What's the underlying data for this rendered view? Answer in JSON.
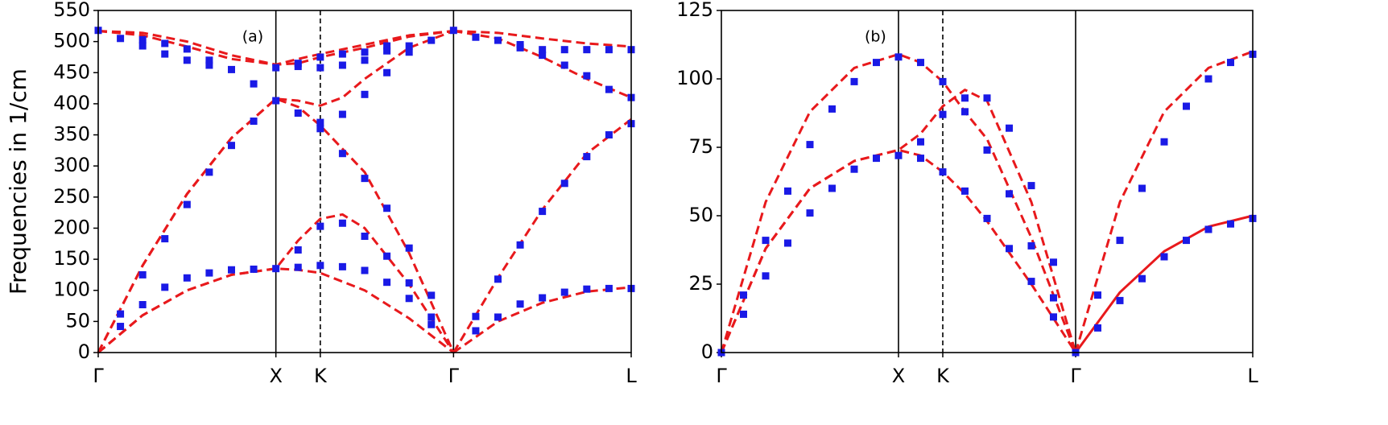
{
  "chart_data": [
    {
      "type": "line",
      "annotation": "(a)",
      "y_label": "Frequencies in 1/cm",
      "xlim": [
        0,
        3
      ],
      "ylim": [
        0,
        550
      ],
      "xticks": [
        {
          "value": 0,
          "label": "Γ"
        },
        {
          "value": 1,
          "label": "X"
        },
        {
          "value": 1.25,
          "label": "K"
        },
        {
          "value": 2,
          "label": "Γ"
        },
        {
          "value": 3,
          "label": "L"
        }
      ],
      "yticks": [
        0,
        50,
        100,
        150,
        200,
        250,
        300,
        350,
        400,
        450,
        500,
        550
      ],
      "vlines": [
        1,
        1.25,
        2
      ],
      "vline_styles": [
        "solid",
        "dashed",
        "solid"
      ],
      "series": [
        {
          "style": "dashed",
          "color": "#e8191c",
          "x": [
            0,
            0.25,
            0.5,
            0.75,
            1,
            1.125,
            1.25,
            1.5,
            1.75,
            2
          ],
          "values": [
            0,
            60,
            100,
            125,
            135,
            133,
            128,
            100,
            55,
            0
          ]
        },
        {
          "style": "dashed",
          "color": "#e8191c",
          "x": [
            0,
            0.25,
            0.5,
            0.75,
            1,
            1.125,
            1.25,
            1.375,
            1.5,
            1.75,
            2
          ],
          "values": [
            0,
            60,
            100,
            125,
            135,
            180,
            215,
            222,
            200,
            110,
            0
          ]
        },
        {
          "style": "dashed",
          "color": "#e8191c",
          "x": [
            0,
            0.25,
            0.5,
            0.75,
            1,
            1.125,
            1.25,
            1.5,
            1.75,
            2
          ],
          "values": [
            0,
            140,
            255,
            345,
            408,
            395,
            365,
            290,
            160,
            0
          ]
        },
        {
          "style": "dashed",
          "color": "#e8191c",
          "x": [
            0,
            0.25,
            0.5,
            0.75,
            1,
            1.125,
            1.25,
            1.5,
            1.75,
            2
          ],
          "values": [
            517,
            510,
            492,
            472,
            463,
            465,
            475,
            490,
            508,
            517
          ]
        },
        {
          "style": "dashed",
          "color": "#e8191c",
          "x": [
            0,
            0.25,
            0.5,
            0.75,
            1,
            1.125,
            1.25,
            1.5,
            1.75,
            2
          ],
          "values": [
            517,
            514,
            500,
            478,
            463,
            472,
            480,
            495,
            510,
            517
          ]
        },
        {
          "style": "dashed",
          "color": "#e8191c",
          "x": [
            0,
            0.25,
            0.5,
            0.75,
            1,
            1.125,
            1.25,
            1.375,
            1.5,
            1.75,
            2
          ],
          "values": [
            0,
            140,
            255,
            345,
            408,
            405,
            397,
            410,
            440,
            490,
            517
          ]
        },
        {
          "style": "dashed",
          "color": "#e8191c",
          "x": [
            2,
            2.25,
            2.5,
            2.75,
            3
          ],
          "values": [
            0,
            50,
            80,
            98,
            105
          ]
        },
        {
          "style": "dashed",
          "color": "#e8191c",
          "x": [
            2,
            2.25,
            2.5,
            2.75,
            3
          ],
          "values": [
            0,
            120,
            230,
            320,
            375
          ]
        },
        {
          "style": "dashed",
          "color": "#e8191c",
          "x": [
            2,
            2.25,
            2.5,
            2.75,
            3
          ],
          "values": [
            517,
            505,
            475,
            440,
            410
          ]
        },
        {
          "style": "dashed",
          "color": "#e8191c",
          "x": [
            2,
            2.25,
            2.5,
            2.75,
            3
          ],
          "values": [
            517,
            514,
            505,
            497,
            492
          ]
        },
        {
          "style": "markers",
          "color": "#1a1ae6",
          "x": [
            0,
            0.125,
            0.125,
            0.125,
            0.25,
            0.25,
            0.25,
            0.25,
            0.375,
            0.375,
            0.375,
            0.375,
            0.5,
            0.5,
            0.5,
            0.5,
            0.625,
            0.625,
            0.625,
            0.625,
            0.75,
            0.75,
            0.75,
            0.875,
            0.875,
            0.875,
            1,
            1,
            1,
            1.125,
            1.125,
            1.125,
            1.125,
            1.125,
            1.25,
            1.25,
            1.25,
            1.25,
            1.25,
            1.25,
            1.375,
            1.375,
            1.375,
            1.375,
            1.375,
            1.375,
            1.5,
            1.5,
            1.5,
            1.5,
            1.5,
            1.5,
            1.625,
            1.625,
            1.625,
            1.625,
            1.625,
            1.625,
            1.75,
            1.75,
            1.75,
            1.75,
            1.75,
            1.875,
            1.875,
            1.875,
            1.875,
            2,
            2.125,
            2.125,
            2.125,
            2.25,
            2.25,
            2.25,
            2.375,
            2.375,
            2.375,
            2.375,
            2.5,
            2.5,
            2.5,
            2.5,
            2.625,
            2.625,
            2.625,
            2.625,
            2.75,
            2.75,
            2.75,
            2.75,
            2.875,
            2.875,
            2.875,
            2.875,
            3,
            3,
            3,
            3
          ],
          "values": [
            518,
            42,
            62,
            505,
            77,
            125,
            493,
            503,
            105,
            183,
            480,
            497,
            120,
            238,
            470,
            488,
            128,
            290,
            462,
            470,
            133,
            333,
            455,
            134,
            372,
            432,
            135,
            405,
            458,
            137,
            165,
            385,
            460,
            465,
            140,
            203,
            360,
            370,
            458,
            475,
            138,
            208,
            320,
            383,
            462,
            480,
            132,
            187,
            280,
            415,
            470,
            483,
            113,
            155,
            232,
            450,
            485,
            493,
            87,
            112,
            168,
            483,
            493,
            45,
            57,
            92,
            502,
            518,
            35,
            58,
            507,
            57,
            118,
            502,
            78,
            173,
            495,
            490,
            88,
            227,
            478,
            487,
            97,
            272,
            462,
            487,
            102,
            315,
            445,
            487,
            103,
            350,
            423,
            487,
            103,
            368,
            410,
            487
          ]
        }
      ]
    },
    {
      "type": "line",
      "annotation": "(b)",
      "xlim": [
        0,
        3
      ],
      "ylim": [
        0,
        125
      ],
      "xticks": [
        {
          "value": 0,
          "label": "Γ"
        },
        {
          "value": 1,
          "label": "X"
        },
        {
          "value": 1.25,
          "label": "K"
        },
        {
          "value": 2,
          "label": "Γ"
        },
        {
          "value": 3,
          "label": "L"
        }
      ],
      "yticks": [
        0,
        25,
        50,
        75,
        100,
        125
      ],
      "vlines": [
        1,
        1.25,
        2
      ],
      "vline_styles": [
        "solid",
        "dashed",
        "solid"
      ],
      "series": [
        {
          "style": "dashed",
          "color": "#e8191c",
          "x": [
            0,
            0.25,
            0.5,
            0.75,
            1,
            1.125,
            1.25,
            1.375,
            1.5,
            1.75,
            2
          ],
          "values": [
            0,
            38,
            60,
            70,
            74,
            72,
            66,
            58,
            48,
            25,
            0
          ]
        },
        {
          "style": "dashed",
          "color": "#e8191c",
          "x": [
            0,
            0.25,
            0.5,
            0.75,
            1,
            1.125,
            1.25,
            1.375,
            1.5,
            1.75,
            2
          ],
          "values": [
            0,
            38,
            60,
            70,
            74,
            80,
            90,
            96,
            92,
            55,
            0
          ]
        },
        {
          "style": "dashed",
          "color": "#e8191c",
          "x": [
            0,
            0.25,
            0.5,
            0.75,
            1,
            1.125,
            1.25,
            1.375,
            1.5,
            1.75,
            2
          ],
          "values": [
            0,
            55,
            88,
            104,
            109,
            106,
            99,
            88,
            78,
            42,
            0
          ]
        },
        {
          "style": "solid",
          "color": "#e8191c",
          "x": [
            2,
            2.25,
            2.5,
            2.75,
            3
          ],
          "values": [
            0,
            22,
            37,
            46,
            50
          ]
        },
        {
          "style": "dashed",
          "color": "#e8191c",
          "x": [
            2,
            2.25,
            2.5,
            2.75,
            3
          ],
          "values": [
            0,
            55,
            88,
            104,
            110
          ]
        },
        {
          "style": "markers",
          "color": "#1a1ae6",
          "x": [
            0,
            0.125,
            0.125,
            0.25,
            0.25,
            0.375,
            0.375,
            0.5,
            0.5,
            0.625,
            0.625,
            0.75,
            0.75,
            0.875,
            0.875,
            1,
            1,
            1.125,
            1.125,
            1.125,
            1.25,
            1.25,
            1.25,
            1.375,
            1.375,
            1.375,
            1.5,
            1.5,
            1.5,
            1.625,
            1.625,
            1.625,
            1.75,
            1.75,
            1.75,
            1.875,
            1.875,
            1.875,
            2,
            2.125,
            2.125,
            2.25,
            2.25,
            2.375,
            2.375,
            2.5,
            2.5,
            2.625,
            2.625,
            2.75,
            2.75,
            2.875,
            2.875,
            3,
            3
          ],
          "values": [
            0,
            14,
            21,
            28,
            41,
            40,
            59,
            51,
            76,
            60,
            89,
            67,
            99,
            71,
            106,
            72,
            108,
            71,
            77,
            106,
            66,
            87,
            99,
            59,
            88,
            93,
            49,
            74,
            93,
            38,
            58,
            82,
            26,
            39,
            61,
            13,
            20,
            33,
            0,
            9,
            21,
            19,
            41,
            27,
            60,
            35,
            77,
            41,
            90,
            45,
            100,
            47,
            106,
            49,
            109
          ]
        }
      ]
    }
  ]
}
